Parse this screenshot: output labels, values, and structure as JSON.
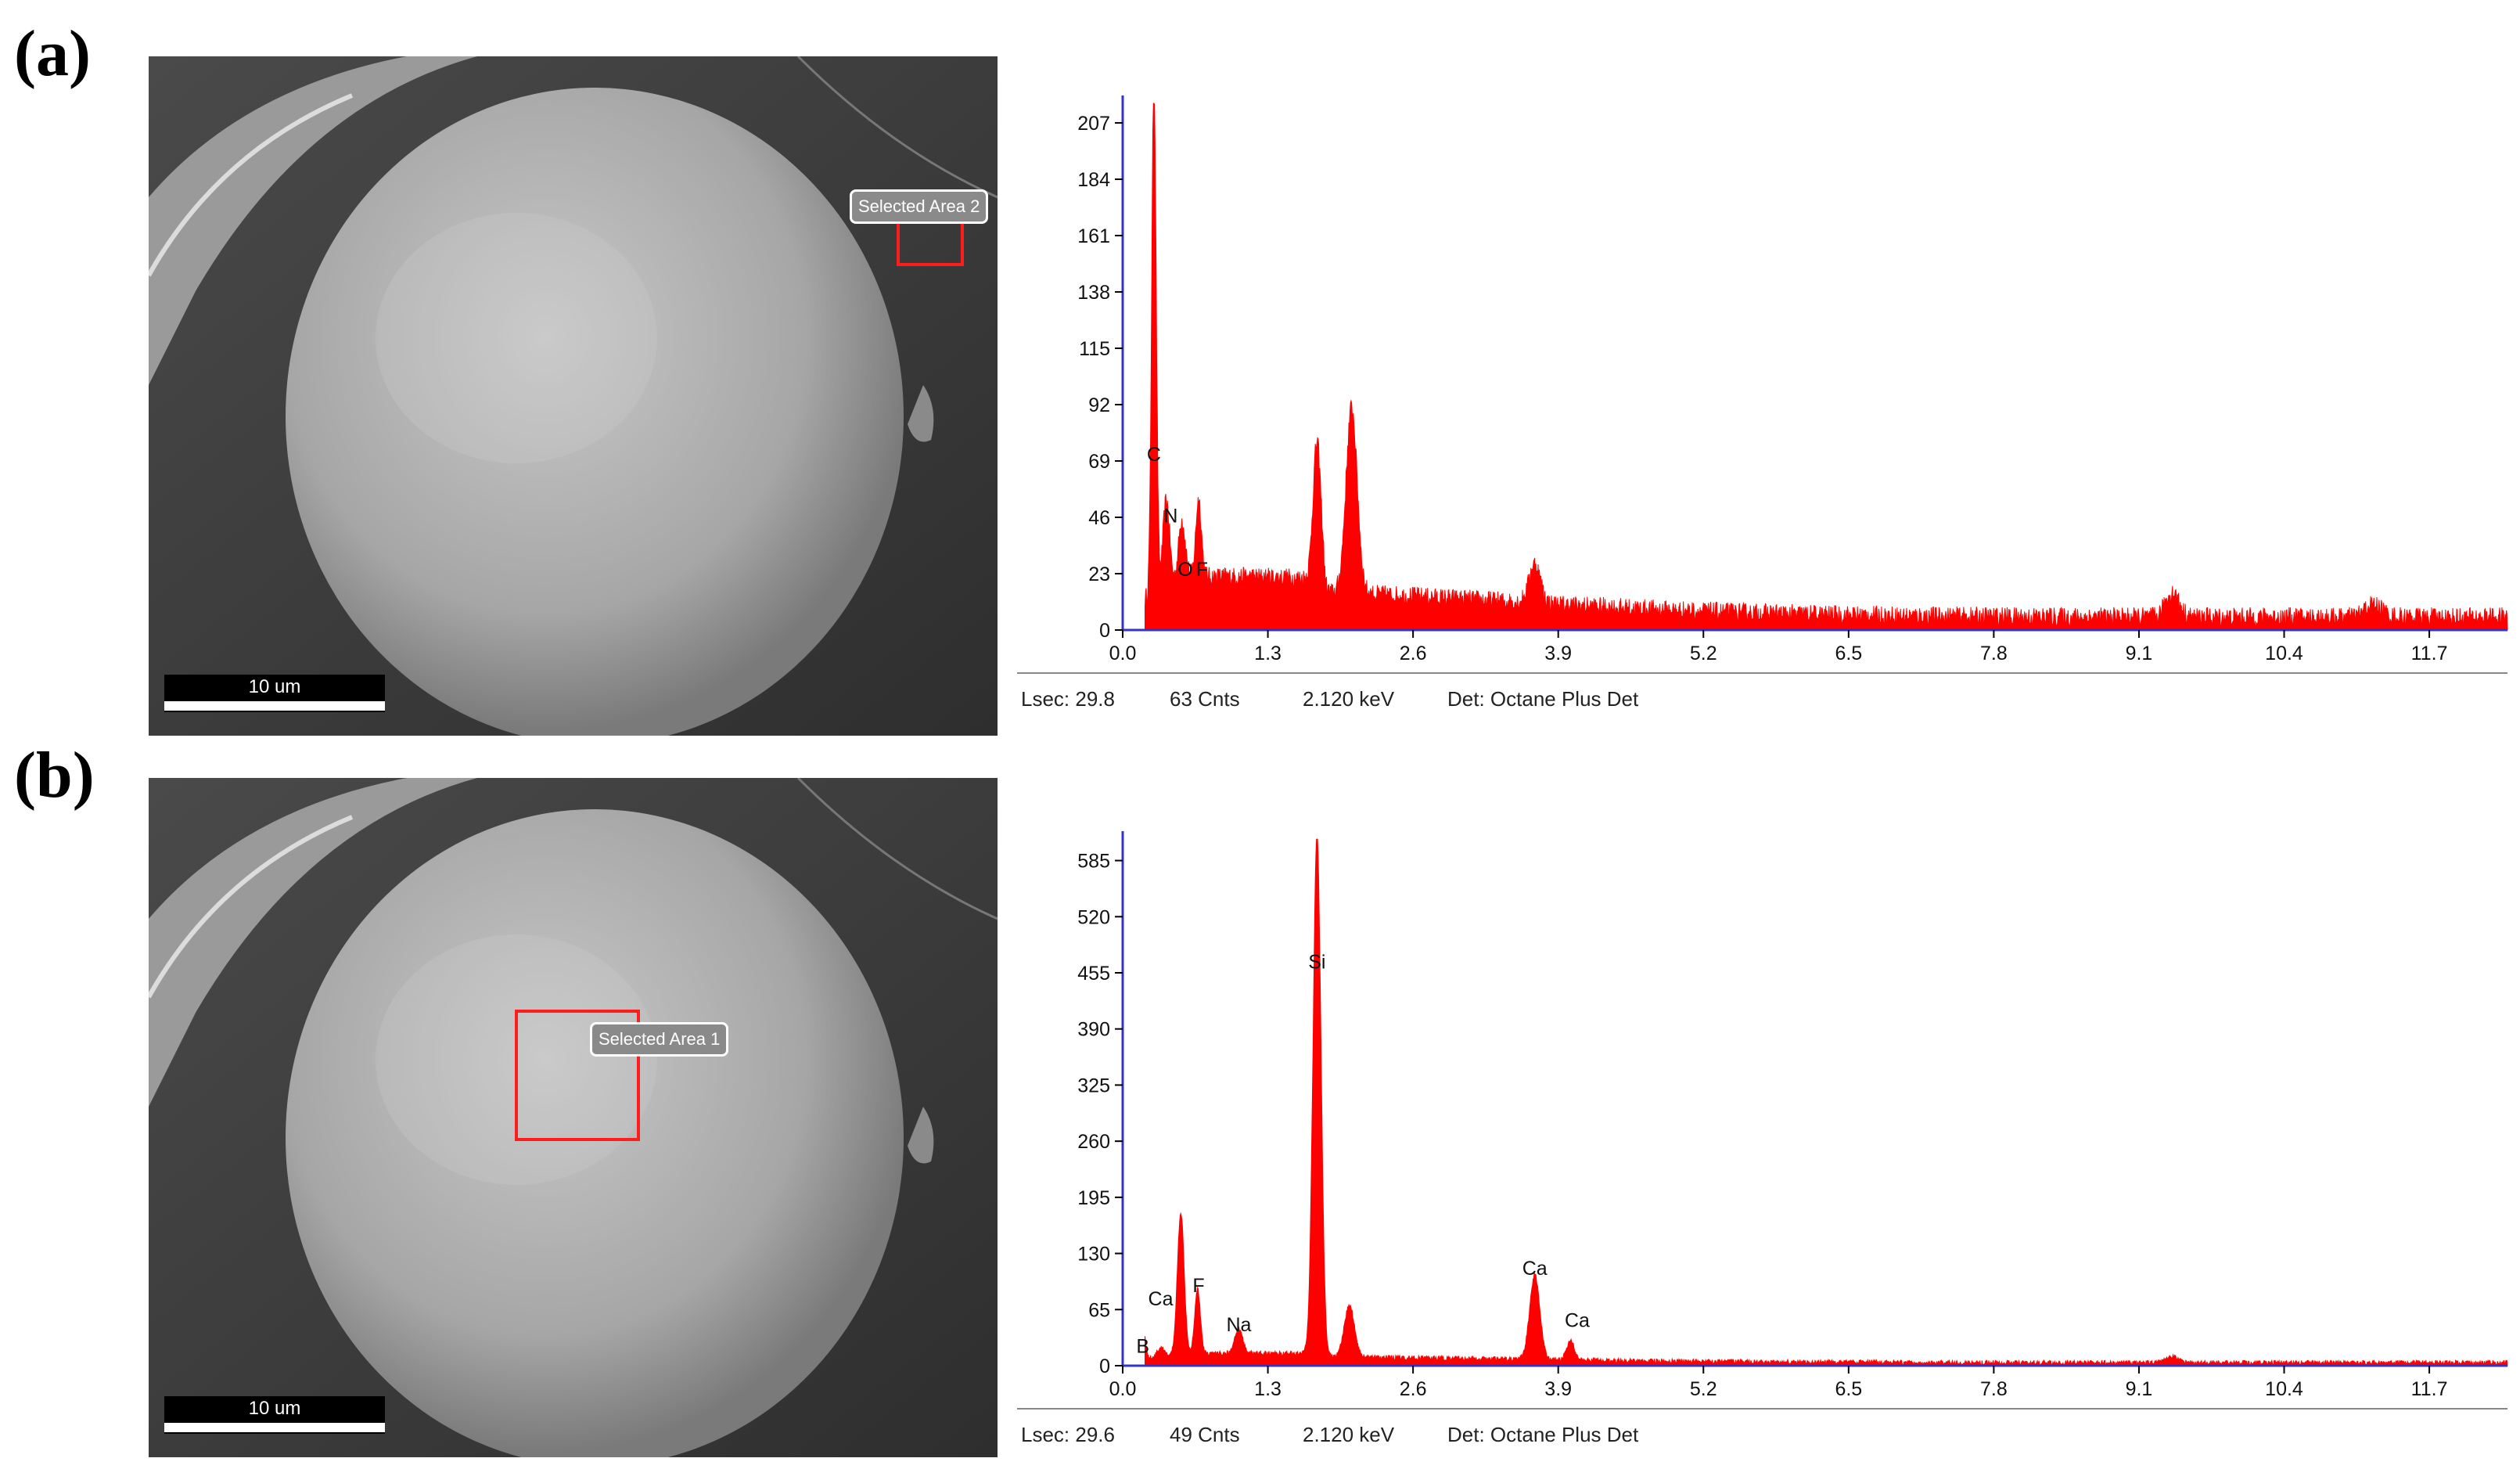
{
  "panels": [
    {
      "label": "(a)",
      "scale_bar": "10 um",
      "area_label": "Selected Area 2",
      "status": {
        "lsec": "Lsec: 29.8",
        "cnts": "63 Cnts",
        "kev": "2.120 keV",
        "det": "Det: Octane Plus Det"
      }
    },
    {
      "label": "(b)",
      "scale_bar": "10 um",
      "area_label": "Selected Area 1",
      "status": {
        "lsec": "Lsec: 29.6",
        "cnts": "49 Cnts",
        "kev": "2.120 keV",
        "det": "Det: Octane Plus Det"
      }
    }
  ],
  "colors": {
    "spectrum": "#ff0000",
    "axis": "#3333cc",
    "selection": "#ff1c1c"
  },
  "chart_data": [
    {
      "type": "area",
      "xlim": [
        0,
        12.4
      ],
      "ylim": [
        0,
        215
      ],
      "x_ticks": [
        0.0,
        1.3,
        2.6,
        3.9,
        5.2,
        6.5,
        7.8,
        9.1,
        10.4,
        11.7
      ],
      "x_tick_labels": [
        "0.0",
        "1.3",
        "2.6",
        "3.9",
        "5.2",
        "6.5",
        "7.8",
        "9.1",
        "10.4",
        "11.7"
      ],
      "y_ticks": [
        0,
        23,
        46,
        69,
        92,
        115,
        138,
        161,
        184,
        207
      ],
      "y_tick_labels": [
        "0",
        "23",
        "46",
        "69",
        "92",
        "115",
        "138",
        "161",
        "184",
        "207"
      ],
      "baseline": 9,
      "peaks": [
        {
          "x": 0.28,
          "y": 210,
          "w": 0.02
        },
        {
          "x": 0.39,
          "y": 36,
          "w": 0.03
        },
        {
          "x": 0.53,
          "y": 25,
          "w": 0.03
        },
        {
          "x": 0.68,
          "y": 32,
          "w": 0.025
        },
        {
          "x": 1.74,
          "y": 56,
          "w": 0.035
        },
        {
          "x": 2.05,
          "y": 76,
          "w": 0.05
        },
        {
          "x": 3.69,
          "y": 16,
          "w": 0.05
        },
        {
          "x": 9.4,
          "y": 10,
          "w": 0.06
        },
        {
          "x": 11.2,
          "y": 5,
          "w": 0.08
        }
      ],
      "annotations": [
        {
          "text": "C",
          "x": 0.28,
          "y": 69
        },
        {
          "text": "N",
          "x": 0.43,
          "y": 44
        },
        {
          "text": "O",
          "x": 0.56,
          "y": 22
        },
        {
          "text": "F",
          "x": 0.71,
          "y": 22
        }
      ]
    },
    {
      "type": "area",
      "xlim": [
        0,
        12.4
      ],
      "ylim": [
        0,
        610
      ],
      "x_ticks": [
        0.0,
        1.3,
        2.6,
        3.9,
        5.2,
        6.5,
        7.8,
        9.1,
        10.4,
        11.7
      ],
      "x_tick_labels": [
        "0.0",
        "1.3",
        "2.6",
        "3.9",
        "5.2",
        "6.5",
        "7.8",
        "9.1",
        "10.4",
        "11.7"
      ],
      "y_ticks": [
        0,
        65,
        130,
        195,
        260,
        325,
        390,
        455,
        520,
        585
      ],
      "y_tick_labels": [
        "0",
        "65",
        "130",
        "195",
        "260",
        "325",
        "390",
        "455",
        "520",
        "585"
      ],
      "baseline": 6,
      "peaks": [
        {
          "x": 0.18,
          "y": 42,
          "w": 0.02
        },
        {
          "x": 0.34,
          "y": 10,
          "w": 0.03
        },
        {
          "x": 0.52,
          "y": 165,
          "w": 0.03
        },
        {
          "x": 0.67,
          "y": 75,
          "w": 0.025
        },
        {
          "x": 1.04,
          "y": 28,
          "w": 0.035
        },
        {
          "x": 1.74,
          "y": 600,
          "w": 0.035
        },
        {
          "x": 2.03,
          "y": 60,
          "w": 0.045
        },
        {
          "x": 3.69,
          "y": 98,
          "w": 0.045
        },
        {
          "x": 4.01,
          "y": 22,
          "w": 0.035
        },
        {
          "x": 9.4,
          "y": 7,
          "w": 0.06
        }
      ],
      "annotations": [
        {
          "text": "B",
          "x": 0.18,
          "y": 15
        },
        {
          "text": "Ca",
          "x": 0.34,
          "y": 70
        },
        {
          "text": "F",
          "x": 0.68,
          "y": 85
        },
        {
          "text": "Na",
          "x": 1.04,
          "y": 40
        },
        {
          "text": "Si",
          "x": 1.74,
          "y": 460
        },
        {
          "text": "Ca",
          "x": 3.69,
          "y": 105
        },
        {
          "text": "Ca",
          "x": 4.07,
          "y": 45
        }
      ]
    }
  ]
}
